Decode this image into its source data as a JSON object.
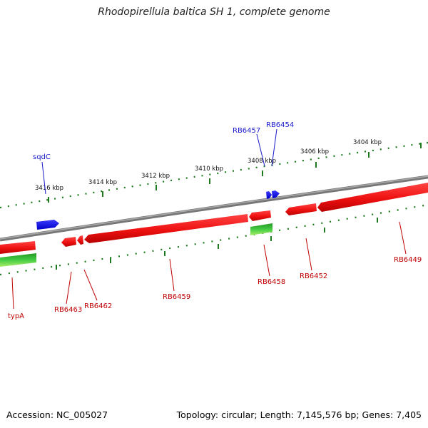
{
  "title": "Rhodopirellula baltica SH 1, complete genome",
  "footer": {
    "accession": "Accession: NC_005027",
    "summary": "Topology: circular; Length: 7,145,576 bp; Genes: 7,405"
  },
  "position_scale": {
    "unit": "kbp",
    "labels": [
      "3416 kbp",
      "3414 kbp",
      "3412 kbp",
      "3410 kbp",
      "3408 kbp",
      "3406 kbp",
      "3404 kbp"
    ]
  },
  "gene_labels": {
    "forward": [
      "sqdC",
      "RB6457",
      "RB6454"
    ],
    "reverse": [
      "typA",
      "RB6463",
      "RB6462",
      "RB6459",
      "RB6458",
      "RB6452",
      "RB6449"
    ]
  },
  "colors": {
    "backbone": "#888888",
    "reverse_genes": "#ee1111",
    "forward_genes": "#1010ee",
    "rna_genes": "#22aa22",
    "tick_marks": "#1e7a1e",
    "reverse_label": "#c00000",
    "forward_label": "#1a1acc"
  }
}
